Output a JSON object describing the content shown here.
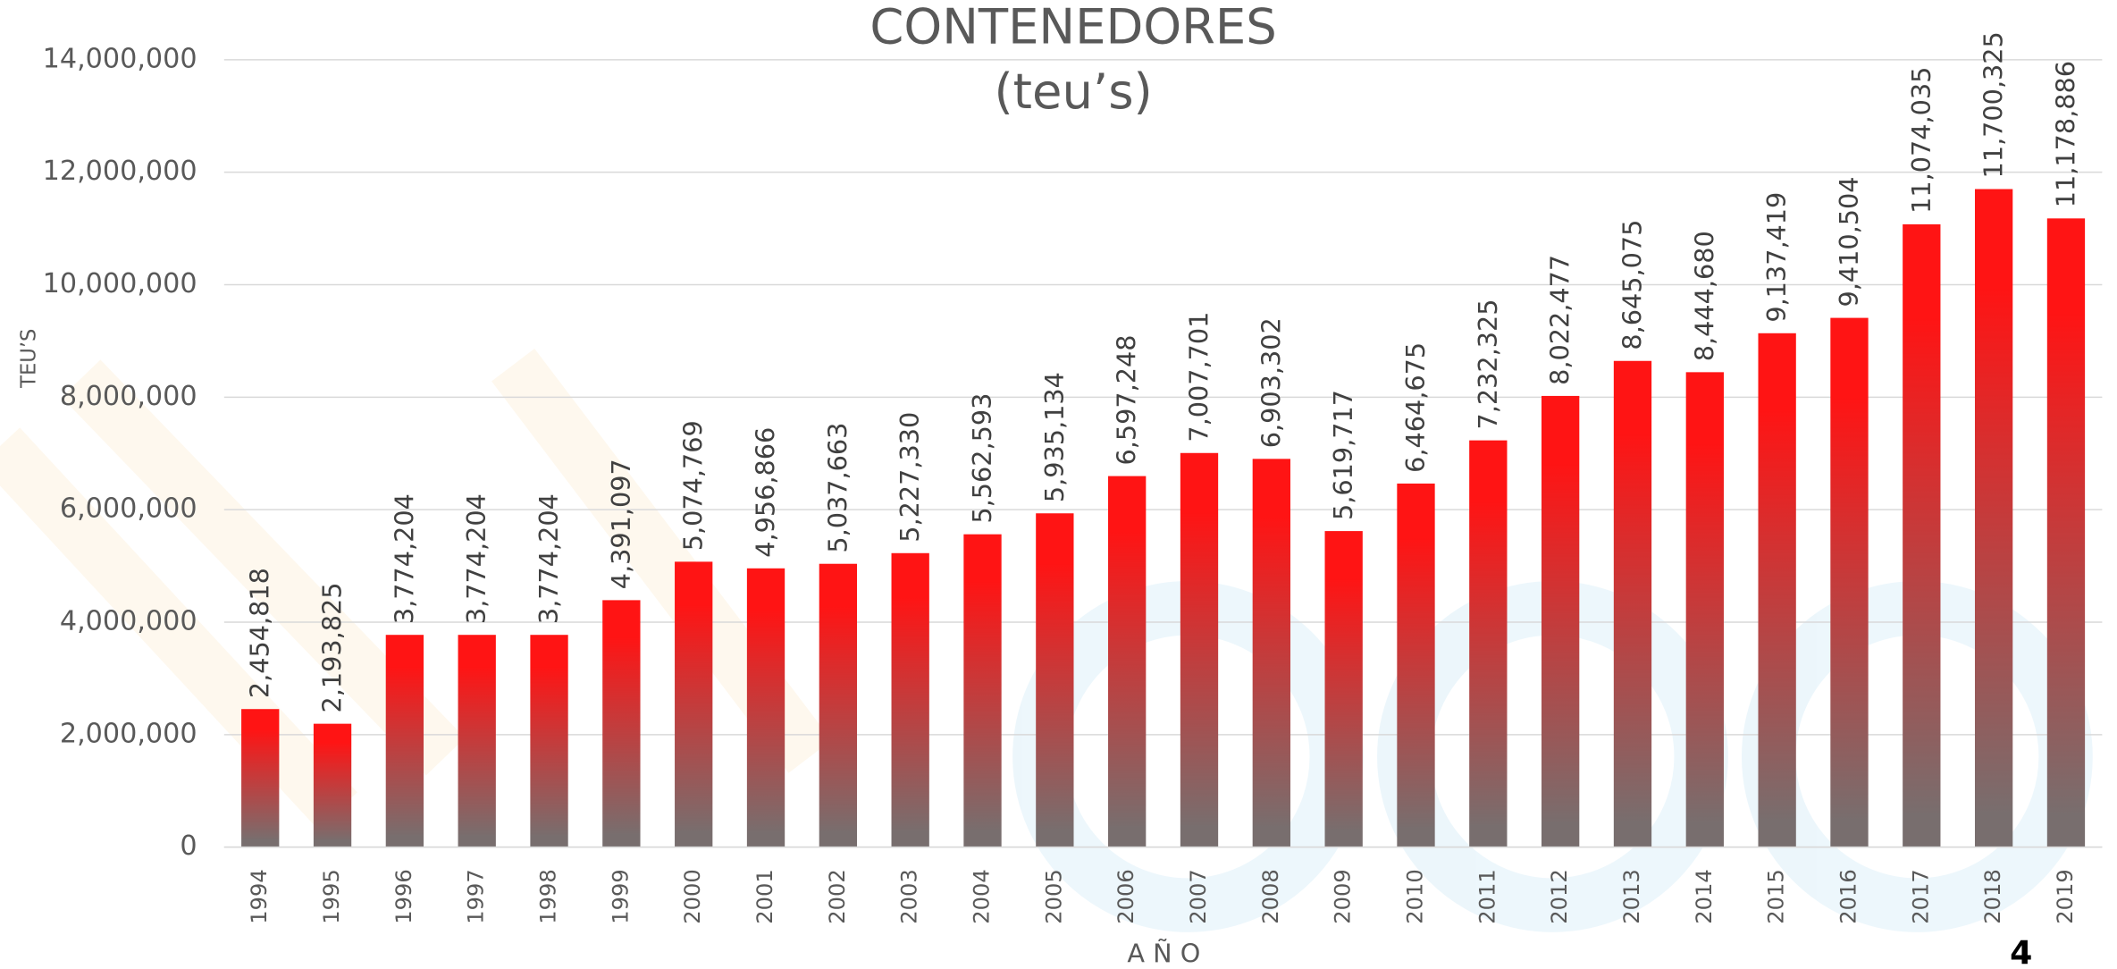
{
  "chart_data": {
    "type": "bar",
    "title": "CONTENEDORES",
    "subtitle": "(teu’s)",
    "y_label": "TEU’S",
    "x_label": "A Ñ O",
    "page_number": "4",
    "categories": [
      "1994",
      "1995",
      "1996",
      "1997",
      "1998",
      "1999",
      "2000",
      "2001",
      "2002",
      "2003",
      "2004",
      "2005",
      "2006",
      "2007",
      "2008",
      "2009",
      "2010",
      "2011",
      "2012",
      "2013",
      "2014",
      "2015",
      "2016",
      "2017",
      "2018",
      "2019"
    ],
    "values": [
      2454818,
      2193825,
      3774204,
      3774204,
      3774204,
      4391097,
      5074769,
      4956866,
      5037663,
      5227330,
      5562593,
      5935134,
      6597248,
      7007701,
      6903302,
      5619717,
      6464675,
      7232325,
      8022477,
      8645075,
      8444680,
      9137419,
      9410504,
      11074035,
      11700325,
      11178886
    ],
    "value_labels": [
      "2,454,818",
      "2,193,825",
      "3,774,204",
      "3,774,204",
      "3,774,204",
      "4,391,097",
      "5,074,769",
      "4,956,866",
      "5,037,663",
      "5,227,330",
      "5,562,593",
      "5,935,134",
      "6,597,248",
      "7,007,701",
      "6,903,302",
      "5,619,717",
      "6,464,675",
      "7,232,325",
      "8,022,477",
      "8,645,075",
      "8,444,680",
      "9,137,419",
      "9,410,504",
      "11,074,035",
      "11,700,325",
      "11,178,886"
    ],
    "color": "#ff1414",
    "color_bottom": "#786e6e",
    "ylim": [
      0,
      14000000
    ],
    "yticks": [
      0,
      {
        "value": 2000000,
        "label": "2,000,000"
      },
      {
        "value": 4000000,
        "label": "4,000,000"
      },
      {
        "value": 6000000,
        "label": "6,000,000"
      },
      {
        "value": 8000000,
        "label": "8,000,000"
      },
      {
        "value": 10000000,
        "label": "10,000,000"
      },
      {
        "value": 12000000,
        "label": "12,000,000"
      },
      {
        "value": 14000000,
        "label": "14,000,000"
      }
    ],
    "grid": true
  }
}
